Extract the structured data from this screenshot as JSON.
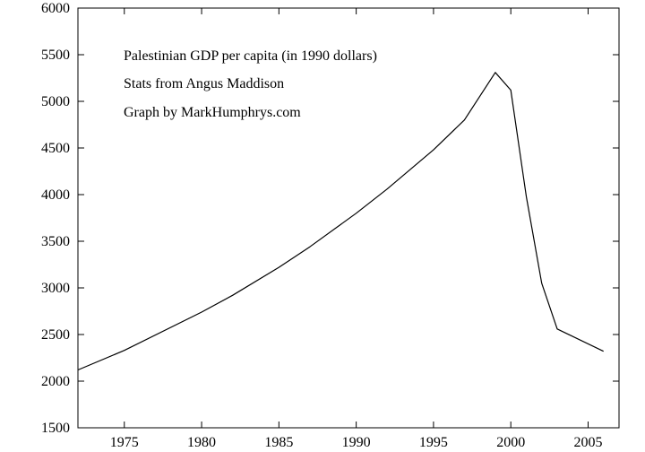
{
  "chart_data": {
    "type": "line",
    "annotations": [
      "Palestinian GDP per capita (in 1990 dollars)",
      "Stats from Angus Maddison",
      "Graph by MarkHumphrys.com"
    ],
    "xlabel": "",
    "ylabel": "",
    "xlim": [
      1972,
      2007
    ],
    "ylim": [
      1500,
      6000
    ],
    "x_ticks": [
      1975,
      1980,
      1985,
      1990,
      1995,
      2000,
      2005
    ],
    "y_ticks": [
      1500,
      2000,
      2500,
      3000,
      3500,
      4000,
      4500,
      5000,
      5500,
      6000
    ],
    "grid": false,
    "legend": "none",
    "series": [
      {
        "name": "Palestinian GDP per capita",
        "color": "#000000",
        "x": [
          1972,
          1975,
          1980,
          1982,
          1985,
          1987,
          1990,
          1992,
          1995,
          1997,
          1999,
          2000,
          2001,
          2002,
          2003,
          2006
        ],
        "values": [
          2120,
          2330,
          2740,
          2920,
          3220,
          3440,
          3800,
          4060,
          4480,
          4800,
          5310,
          5120,
          3980,
          3050,
          2560,
          2320
        ]
      }
    ]
  }
}
